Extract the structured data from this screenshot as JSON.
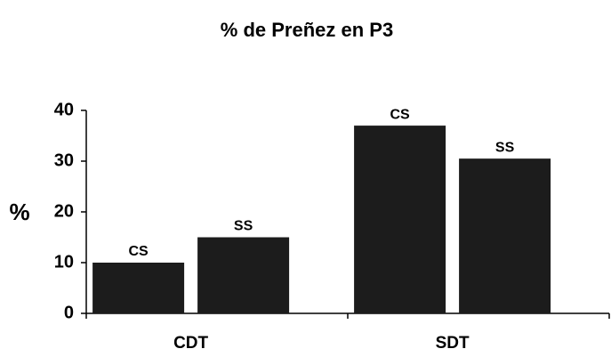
{
  "chart_data": {
    "type": "bar",
    "title": "% de Preñez en P3",
    "y_label": "%",
    "categories": [
      "CDT",
      "SDT"
    ],
    "series": [
      {
        "name": "CS",
        "color": "#1c1c1c",
        "values": [
          10,
          37
        ]
      },
      {
        "name": "SS",
        "color": "#1c1c1c",
        "values": [
          15,
          30.5
        ]
      }
    ],
    "ylim": [
      0,
      40
    ],
    "yticks": [
      0,
      10,
      20,
      30,
      40
    ]
  }
}
